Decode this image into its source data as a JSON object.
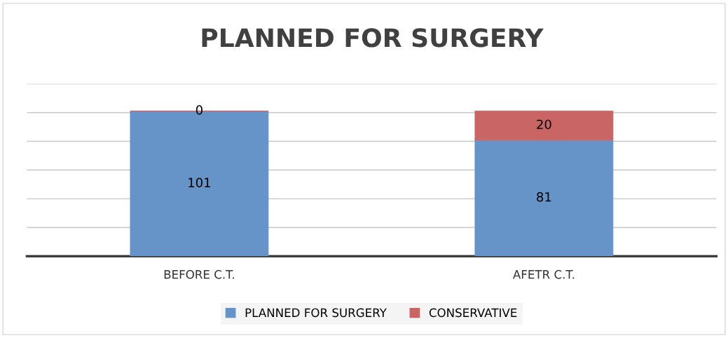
{
  "chart_data": {
    "type": "bar",
    "title": "PLANNED FOR SURGERY",
    "stacked": true,
    "categories": [
      "BEFORE C.T.",
      "AFETR C.T."
    ],
    "series": [
      {
        "name": "PLANNED FOR SURGERY",
        "color": "#6694c8",
        "values": [
          101,
          81
        ]
      },
      {
        "name": "CONSERVATIVE",
        "color": "#c96565",
        "values": [
          0,
          20
        ]
      }
    ],
    "ylim": [
      0,
      120
    ],
    "yticks": [
      {
        "value": 0,
        "label": null
      },
      {
        "value": 20,
        "label": null
      },
      {
        "value": 40,
        "label": null
      },
      {
        "value": 60,
        "label": null
      },
      {
        "value": 80,
        "label": null
      },
      {
        "value": 100,
        "label": null
      },
      {
        "value": 120,
        "label": null
      }
    ],
    "tick_labels": "x",
    "grid": "y",
    "legend": "bottom",
    "data_labels": true
  }
}
